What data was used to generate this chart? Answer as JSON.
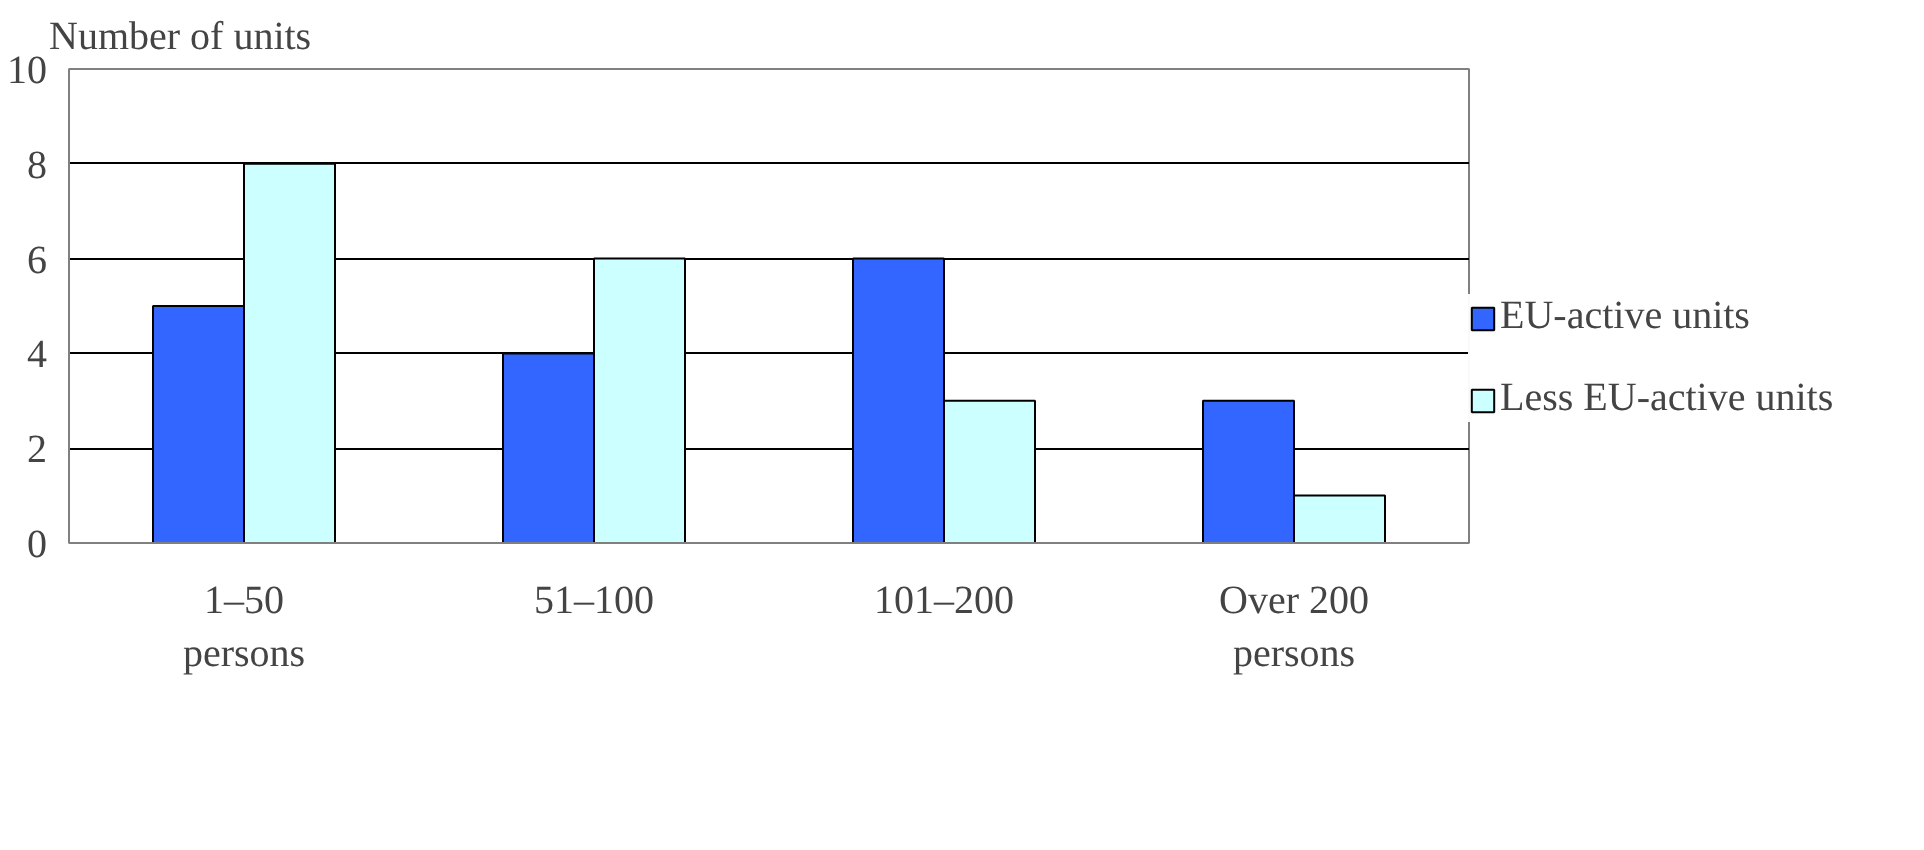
{
  "chart_data": {
    "type": "bar",
    "ylabel": "Number of units",
    "categories": [
      "1–50 persons",
      "51–100",
      "101–200",
      "Over 200 persons"
    ],
    "series": [
      {
        "name": "EU-active units",
        "color": "#3366ff",
        "values": [
          5,
          4,
          6,
          3
        ]
      },
      {
        "name": "Less EU-active units",
        "color": "#ccffff",
        "values": [
          8,
          6,
          3,
          1
        ]
      }
    ],
    "ylim": [
      0,
      10
    ],
    "yticks": [
      0,
      2,
      4,
      6,
      8,
      10
    ],
    "grid": "y",
    "legend": "right"
  }
}
